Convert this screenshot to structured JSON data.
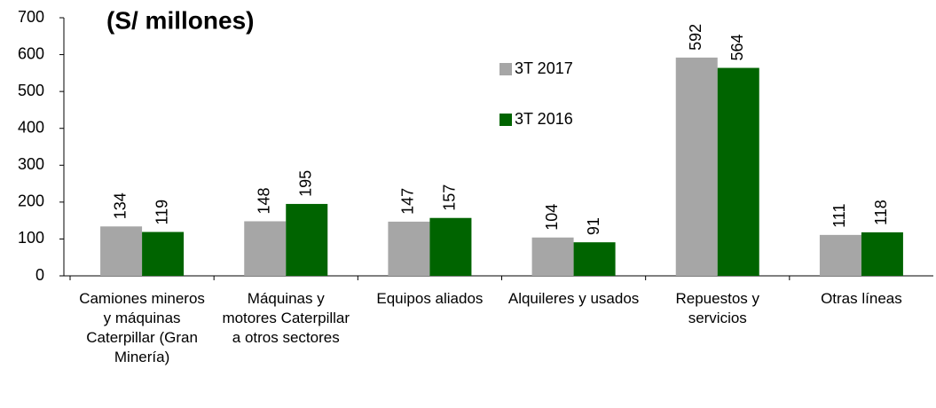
{
  "chart_data": {
    "type": "bar",
    "title": "(S/ millones)",
    "categories": [
      "Camiones mineros y máquinas Caterpillar (Gran Minería)",
      "Máquinas y motores Caterpillar a otros sectores",
      "Equipos aliados",
      "Alquileres y usados",
      "Repuestos y servicios",
      "Otras líneas"
    ],
    "series": [
      {
        "name": "3T 2017",
        "color": "#a6a6a6",
        "values": [
          134,
          148,
          147,
          104,
          592,
          111
        ]
      },
      {
        "name": "3T 2016",
        "color": "#006400",
        "values": [
          119,
          195,
          157,
          91,
          564,
          118
        ]
      }
    ],
    "ylim": [
      0,
      700
    ],
    "yticks": [
      0,
      100,
      200,
      300,
      400,
      500,
      600,
      700
    ],
    "grid": false,
    "legend": "top-center"
  }
}
